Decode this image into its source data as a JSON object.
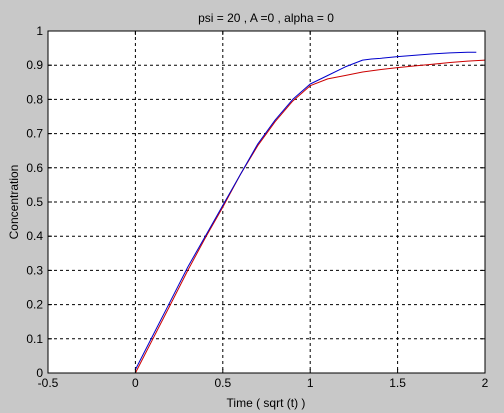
{
  "chart_data": {
    "type": "line",
    "title": "psi = 20 , A =0 , alpha = 0",
    "xlabel": "Time ( sqrt (t) )",
    "ylabel": "Concentration",
    "xlim": [
      -0.5,
      2
    ],
    "ylim": [
      0,
      1
    ],
    "xticks": [
      -0.5,
      0,
      0.5,
      1,
      1.5,
      2
    ],
    "xtick_labels": [
      "-0.5",
      "0",
      "0.5",
      "1",
      "1.5",
      "2"
    ],
    "yticks": [
      0,
      0.1,
      0.2,
      0.3,
      0.4,
      0.5,
      0.6,
      0.7,
      0.8,
      0.9,
      1
    ],
    "ytick_labels": [
      "0",
      "0.1",
      "0.2",
      "0.3",
      "0.4",
      "0.5",
      "0.6",
      "0.7",
      "0.8",
      "0.9",
      "1"
    ],
    "grid": true,
    "background_color": "#c8c8c8",
    "plot_background": "#ffffff",
    "series": [
      {
        "color": "#0000cc",
        "x": [
          0,
          0.1,
          0.2,
          0.3,
          0.4,
          0.5,
          0.6,
          0.7,
          0.8,
          0.9,
          1.0,
          1.1,
          1.2,
          1.3,
          1.35,
          1.4,
          1.5,
          1.6,
          1.7,
          1.8,
          1.9,
          1.95
        ],
        "y": [
          0.01,
          0.11,
          0.21,
          0.31,
          0.4,
          0.49,
          0.58,
          0.67,
          0.74,
          0.8,
          0.845,
          0.87,
          0.895,
          0.915,
          0.918,
          0.92,
          0.925,
          0.929,
          0.933,
          0.936,
          0.938,
          0.938
        ]
      },
      {
        "color": "#cc0000",
        "x": [
          0,
          0.1,
          0.2,
          0.3,
          0.4,
          0.5,
          0.6,
          0.7,
          0.8,
          0.9,
          1.0,
          1.1,
          1.2,
          1.3,
          1.4,
          1.5,
          1.6,
          1.7,
          1.8,
          1.9,
          2.0
        ],
        "y": [
          0,
          0.1,
          0.2,
          0.3,
          0.395,
          0.485,
          0.58,
          0.665,
          0.735,
          0.795,
          0.84,
          0.86,
          0.87,
          0.88,
          0.887,
          0.893,
          0.898,
          0.903,
          0.908,
          0.912,
          0.915
        ]
      }
    ]
  }
}
